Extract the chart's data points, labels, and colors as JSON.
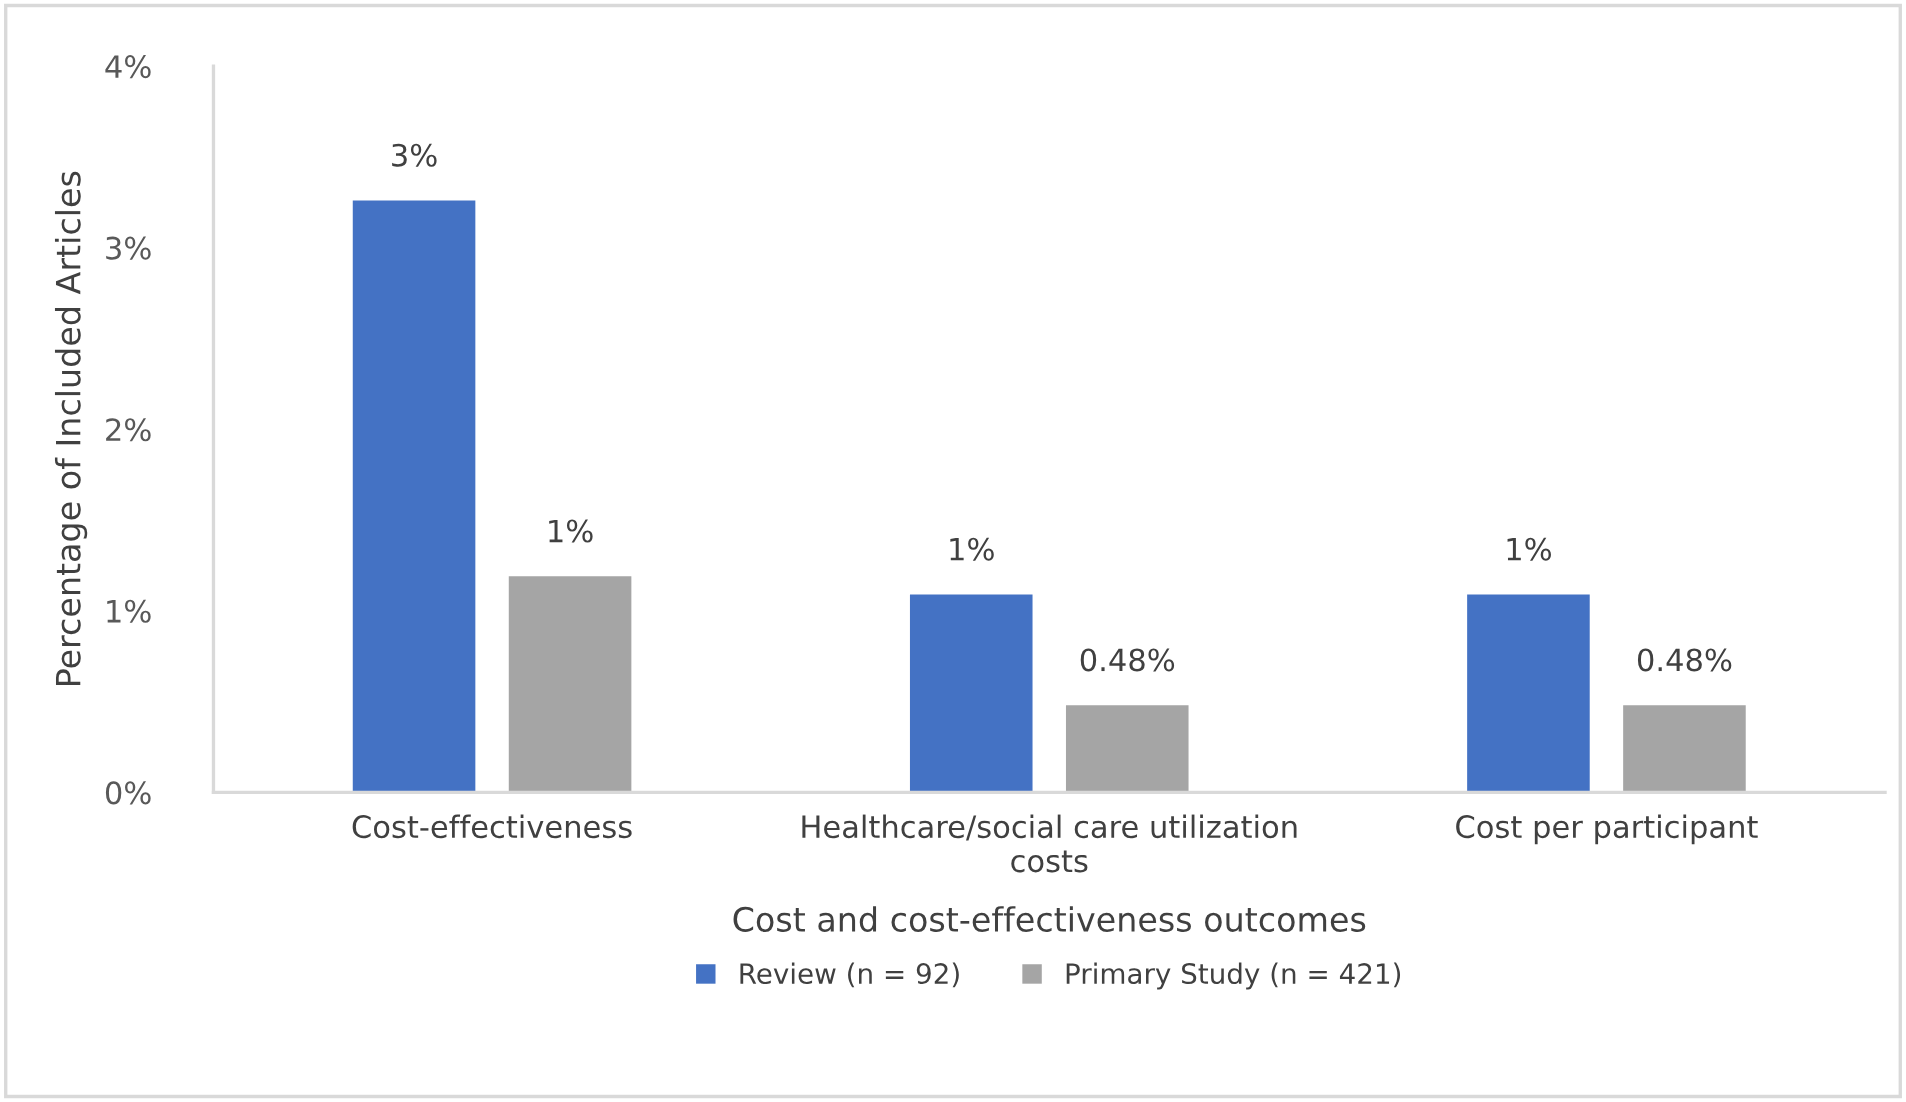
{
  "chart_data": {
    "type": "bar",
    "xlabel": "Cost and cost-effectiveness outcomes",
    "ylabel": "Percentage of Included Articles",
    "categories": [
      "Cost-effectiveness",
      "Healthcare/social care utilization\ncosts",
      "Cost per participant"
    ],
    "series": [
      {
        "name": "Review (n = 92)",
        "color": "#4472c4",
        "values": [
          3.26,
          1.09,
          1.09
        ],
        "value_labels": [
          "3%",
          "1%",
          "1%"
        ]
      },
      {
        "name": "Primary Study (n = 421)",
        "color": "#a5a5a5",
        "values": [
          1.19,
          0.48,
          0.48
        ],
        "value_labels": [
          "1%",
          "0.48%",
          "0.48%"
        ]
      }
    ],
    "ylim": [
      0,
      4
    ],
    "yticks": [
      {
        "value": 0,
        "label": "0%"
      },
      {
        "value": 1,
        "label": "1%"
      },
      {
        "value": 2,
        "label": "2%"
      },
      {
        "value": 3,
        "label": "3%"
      },
      {
        "value": 4,
        "label": "4%"
      }
    ],
    "grid": false,
    "legend": "bottom"
  }
}
